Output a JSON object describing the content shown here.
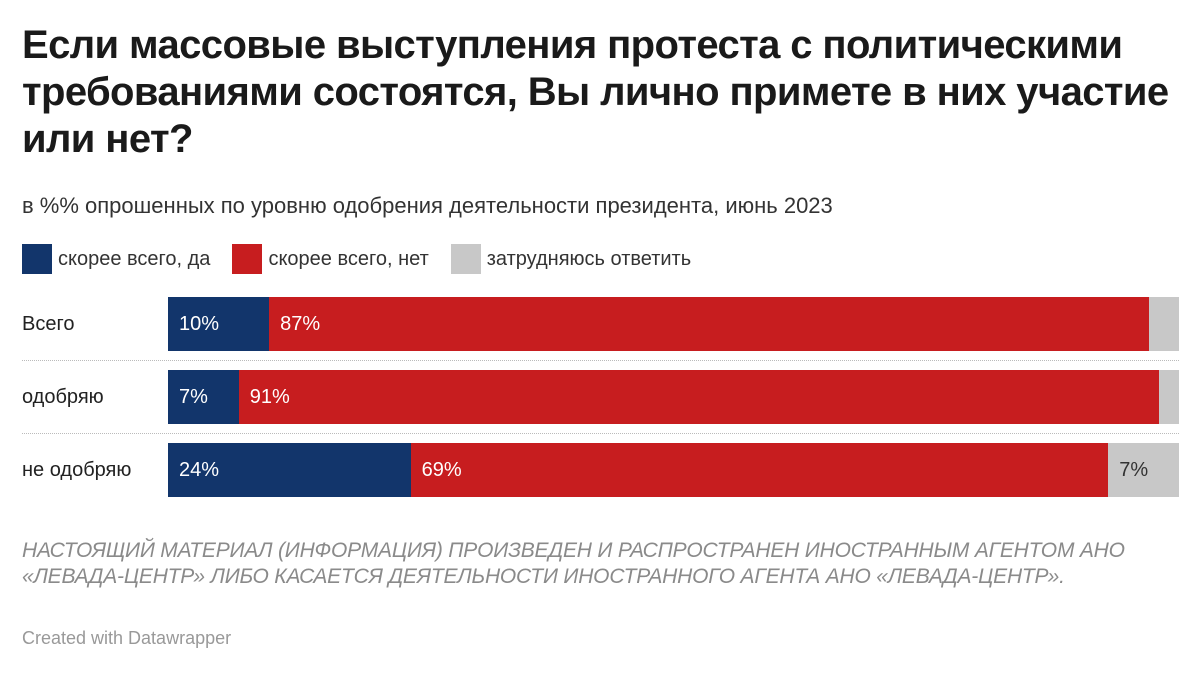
{
  "title": "Если массовые выступления протеста с политическими требованиями состоятся, Вы лично примете в них участие или нет?",
  "subtitle": "в %% опрошенных по уровню одобрения деятельности президента, июнь 2023",
  "footnote": "НАСТОЯЩИЙ МАТЕРИАЛ (ИНФОРМАЦИЯ) ПРОИЗВЕДЕН И РАСПРОСТРАНЕН ИНОСТРАННЫМ АГЕНТОМ АНО «ЛЕВАДА-ЦЕНТР» ЛИБО КАСАЕТСЯ ДЕЯТЕЛЬНОСТИ ИНОСТРАННОГО АГЕНТА АНО «ЛЕВАДА-ЦЕНТР».",
  "credit": "Created with Datawrapper",
  "chart_data": {
    "type": "bar",
    "orientation": "horizontal-stacked",
    "categories": [
      "Всего",
      "одобряю",
      "не одобряю"
    ],
    "series": [
      {
        "name": "скорее всего, да",
        "color": "#12356b",
        "values": [
          10,
          7,
          24
        ],
        "labels": [
          "10%",
          "7%",
          "24%"
        ]
      },
      {
        "name": "скорее всего, нет",
        "color": "#c71d1f",
        "values": [
          87,
          91,
          69
        ],
        "labels": [
          "87%",
          "91%",
          "69%"
        ]
      },
      {
        "name": "затрудняюсь ответить",
        "color": "#c8c8c8",
        "values": [
          3,
          2,
          7
        ],
        "labels": [
          "",
          "",
          "7%"
        ]
      }
    ],
    "xlim": [
      0,
      100
    ],
    "legend_position": "top-left",
    "grid": false
  }
}
